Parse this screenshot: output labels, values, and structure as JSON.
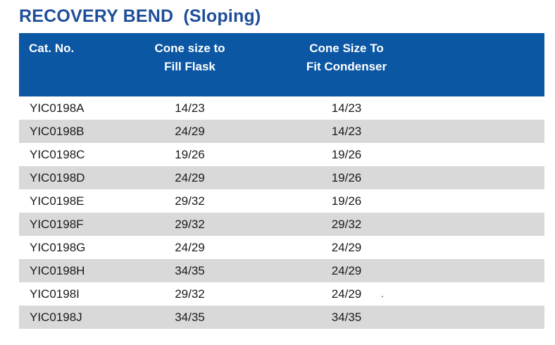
{
  "title": {
    "main": "RECOVERY BEND",
    "sub": "(Sloping)"
  },
  "headers": [
    {
      "line1": "Cat. No.",
      "line2": ""
    },
    {
      "line1": "Cone size to",
      "line2": "Fill Flask"
    },
    {
      "line1": "Cone Size  To",
      "line2": "Fit Condenser"
    }
  ],
  "rows": [
    [
      "YIC0198A",
      "14/23",
      "14/23"
    ],
    [
      "YIC0198B",
      "24/29",
      "14/23"
    ],
    [
      "YIC0198C",
      "19/26",
      "19/26"
    ],
    [
      "YIC0198D",
      "24/29",
      "19/26"
    ],
    [
      "YIC0198E",
      "29/32",
      "19/26"
    ],
    [
      "YIC0198F",
      "29/32",
      "29/32"
    ],
    [
      "YIC0198G",
      "24/29",
      "24/29"
    ],
    [
      "YIC0198H",
      "34/35",
      "24/29"
    ],
    [
      "YIC0198I",
      "29/32",
      "24/29"
    ],
    [
      "YIC0198J",
      "34/35",
      "34/35"
    ]
  ],
  "stray_mark": ".",
  "colors": {
    "title": "#1f4e99",
    "header_bg": "#0b57a4",
    "row_shade": "#d9d9d9"
  }
}
